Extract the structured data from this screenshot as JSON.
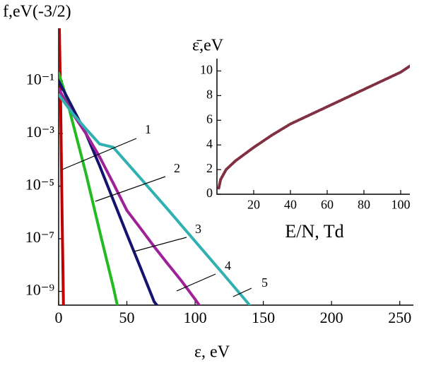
{
  "chart_data": [
    {
      "type": "line",
      "ylabel": "f,eV(-3/2)",
      "xlabel": "ε, eV",
      "log_y": true,
      "xlim": [
        0,
        260
      ],
      "ylim": [
        3e-10,
        10
      ],
      "xticks": [
        0,
        50,
        100,
        150,
        200,
        250
      ],
      "yticks": [
        {
          "value": 0.1,
          "label": "10⁻¹"
        },
        {
          "value": 0.001,
          "label": "10⁻³"
        },
        {
          "value": 1e-05,
          "label": "10⁻⁵"
        },
        {
          "value": 1e-07,
          "label": "10⁻⁷"
        },
        {
          "value": 1e-09,
          "label": "10⁻⁹"
        }
      ],
      "series": [
        {
          "name": "1",
          "color": "#c00000",
          "x": [
            0.5,
            1.5,
            2.5,
            3.5
          ],
          "values": [
            10,
            0.01,
            1e-06,
            3e-10
          ]
        },
        {
          "name": "2",
          "color": "#22bb22",
          "x": [
            0,
            5,
            10,
            15,
            20,
            30,
            40,
            43
          ],
          "values": [
            0.2,
            0.03,
            0.003,
            0.0003,
            3e-05,
            2e-07,
            1.5e-09,
            3e-10
          ]
        },
        {
          "name": "3",
          "color": "#141470",
          "x": [
            0,
            10,
            20,
            30,
            40,
            50,
            60,
            70,
            72
          ],
          "values": [
            0.1,
            0.01,
            0.001,
            6e-05,
            3e-06,
            1.5e-07,
            8e-09,
            4e-10,
            3e-10
          ]
        },
        {
          "name": "4",
          "color": "#a0209a",
          "x": [
            0,
            10,
            20,
            30,
            40,
            50,
            60,
            70,
            80,
            90,
            100,
            103
          ],
          "values": [
            0.05,
            0.006,
            0.001,
            0.00013,
            1.3e-05,
            1.2e-06,
            2.5e-07,
            5e-08,
            1.1e-08,
            2.5e-09,
            5e-10,
            3e-10
          ]
        },
        {
          "name": "5",
          "color": "#30b0b0",
          "x": [
            0,
            10,
            20,
            30,
            40,
            60,
            80,
            100,
            120,
            140
          ],
          "values": [
            0.03,
            0.006,
            0.0015,
            0.0004,
            0.0003,
            2e-05,
            1.3e-06,
            8e-08,
            5e-09,
            3e-10
          ]
        }
      ]
    },
    {
      "type": "line",
      "ylabel": "ε̄,eV",
      "xlabel": "E/N, Td",
      "log_y": false,
      "xlim": [
        0,
        105
      ],
      "ylim": [
        0,
        11
      ],
      "xticks": [
        20,
        40,
        60,
        80,
        100
      ],
      "yticks": [
        0,
        2,
        4,
        6,
        8,
        10
      ],
      "series": [
        {
          "color": "#803040",
          "x": [
            1,
            2,
            5,
            10,
            20,
            30,
            40,
            50,
            60,
            70,
            80,
            90,
            100,
            105
          ],
          "values": [
            0.5,
            1.2,
            2,
            2.7,
            3.8,
            4.8,
            5.7,
            6.4,
            7.1,
            7.8,
            8.5,
            9.2,
            9.9,
            10.4
          ]
        }
      ]
    }
  ]
}
